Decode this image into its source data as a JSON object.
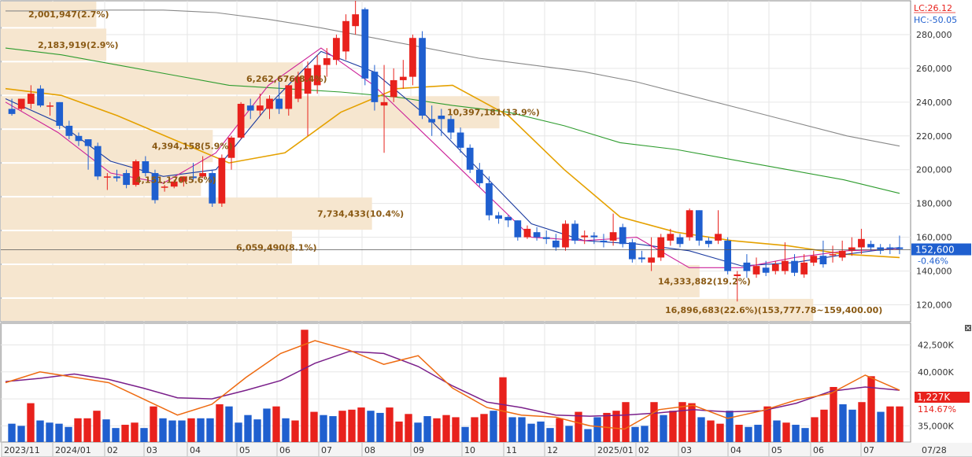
{
  "chart_data": {
    "type": "candlestick",
    "price_panel": {
      "ylim": [
        110000,
        300000
      ],
      "y_ticks": [
        120000,
        140000,
        160000,
        180000,
        200000,
        220000,
        240000,
        260000,
        280000
      ],
      "y_tick_labels": [
        "120,000",
        "140,000",
        "160,000",
        "180,000",
        "200,000",
        "220,000",
        "240,000",
        "260,000",
        "280,000"
      ],
      "last_price": 152600,
      "last_price_label": "152,600",
      "change_label": "-0.46%",
      "lc_label": "LC:26.12",
      "hc_label": "HC:-50.05",
      "volume_profile": [
        {
          "price_low": 284000,
          "price_high": 300000,
          "length_ratio": 0.105,
          "label": "2,001,947(2.7%)"
        },
        {
          "price_low": 264000,
          "price_high": 284000,
          "length_ratio": 0.116,
          "label": "2,183,919(2.9%)"
        },
        {
          "price_low": 244000,
          "price_high": 264000,
          "length_ratio": 0.332,
          "label": "6,262,676(8.4%)"
        },
        {
          "price_low": 224000,
          "price_high": 244000,
          "length_ratio": 0.548,
          "label": "10,397,181(13.9%)"
        },
        {
          "price_low": 204000,
          "price_high": 224000,
          "length_ratio": 0.233,
          "label": "4,394,158(5.9%)"
        },
        {
          "price_low": 184000,
          "price_high": 204000,
          "length_ratio": 0.22,
          "label": "4,151,170(5.6%)"
        },
        {
          "price_low": 164000,
          "price_high": 184000,
          "length_ratio": 0.408,
          "label": "7,734,433(10.4%)"
        },
        {
          "price_low": 144000,
          "price_high": 164000,
          "length_ratio": 0.32,
          "label": "6,059,490(8.1%)"
        },
        {
          "price_low": 124000,
          "price_high": 144000,
          "length_ratio": 0.768,
          "label": "14,333,882(19.2%)"
        },
        {
          "price_low": 110000,
          "price_high": 124000,
          "length_ratio": 0.893,
          "label": "16,896,683(22.6%)(153,777.78~159,400.00)"
        }
      ],
      "candles": [
        [
          236000,
          242000,
          233000,
          232000
        ],
        [
          236000,
          238000,
          242000,
          235000
        ],
        [
          239000,
          250000,
          245000,
          236000
        ],
        [
          248000,
          250000,
          238000,
          237000
        ],
        [
          238000,
          240000,
          238000,
          232000
        ],
        [
          240000,
          240000,
          226000,
          224000
        ],
        [
          226000,
          229000,
          220000,
          218000
        ],
        [
          220000,
          222000,
          217000,
          214000
        ],
        [
          218000,
          218000,
          214000,
          200000
        ],
        [
          214000,
          216000,
          196000,
          194000
        ],
        [
          196000,
          198000,
          196000,
          188000
        ],
        [
          196000,
          200000,
          195000,
          193000
        ],
        [
          198000,
          200000,
          191000,
          189000
        ],
        [
          191000,
          206000,
          205000,
          190000
        ],
        [
          205000,
          208000,
          198000,
          196000
        ],
        [
          198000,
          200000,
          182000,
          180000
        ],
        [
          190000,
          191000,
          190000,
          187000
        ],
        [
          190000,
          194000,
          193000,
          189000
        ],
        [
          193000,
          196000,
          196000,
          190000
        ],
        [
          196000,
          204000,
          195000,
          193000
        ],
        [
          196000,
          208000,
          198000,
          195000
        ],
        [
          198000,
          200000,
          180000,
          178000
        ],
        [
          180000,
          209000,
          207000,
          178000
        ],
        [
          207000,
          220000,
          219000,
          200000
        ],
        [
          219000,
          240000,
          239000,
          218000
        ],
        [
          238000,
          242000,
          235000,
          230000
        ],
        [
          235000,
          245000,
          238000,
          232000
        ],
        [
          236000,
          244000,
          242000,
          230000
        ],
        [
          242000,
          252000,
          236000,
          233000
        ],
        [
          236000,
          249000,
          250000,
          232000
        ],
        [
          242000,
          258000,
          255000,
          240000
        ],
        [
          245000,
          264000,
          260000,
          220000
        ],
        [
          250000,
          268000,
          262000,
          245000
        ],
        [
          262000,
          272000,
          266000,
          255000
        ],
        [
          265000,
          280000,
          278000,
          262000
        ],
        [
          270000,
          292000,
          288000,
          265000
        ],
        [
          285000,
          300000,
          292000,
          280000
        ],
        [
          295000,
          296000,
          254000,
          250000
        ],
        [
          258000,
          262000,
          240000,
          235000
        ],
        [
          238000,
          262000,
          240000,
          210000
        ],
        [
          243000,
          260000,
          253000,
          240000
        ],
        [
          253000,
          265000,
          255000,
          248000
        ],
        [
          255000,
          280000,
          278000,
          250000
        ],
        [
          278000,
          282000,
          232000,
          230000
        ],
        [
          230000,
          238000,
          228000,
          220000
        ],
        [
          232000,
          236000,
          230000,
          220000
        ],
        [
          230000,
          232000,
          222000,
          218000
        ],
        [
          222000,
          225000,
          213000,
          210000
        ],
        [
          213000,
          215000,
          200000,
          198000
        ],
        [
          200000,
          204000,
          192000,
          190000
        ],
        [
          192000,
          196000,
          173000,
          170000
        ],
        [
          173000,
          175000,
          171000,
          168000
        ],
        [
          172000,
          173000,
          170000,
          166000
        ],
        [
          170000,
          170000,
          160000,
          158000
        ],
        [
          160000,
          167000,
          165000,
          159000
        ],
        [
          163000,
          166000,
          160000,
          158000
        ],
        [
          160000,
          164000,
          159000,
          156000
        ],
        [
          158000,
          162000,
          154000,
          152000
        ],
        [
          154000,
          170000,
          168000,
          152000
        ],
        [
          168000,
          170000,
          158000,
          156000
        ],
        [
          160000,
          164000,
          161000,
          156000
        ],
        [
          161000,
          163000,
          160000,
          156000
        ],
        [
          158000,
          162000,
          157000,
          154000
        ],
        [
          158000,
          174000,
          163000,
          155000
        ],
        [
          166000,
          168000,
          156000,
          154000
        ],
        [
          157000,
          159000,
          147000,
          145000
        ],
        [
          148000,
          152000,
          147000,
          145000
        ],
        [
          145000,
          160000,
          148000,
          140000
        ],
        [
          148000,
          162000,
          160000,
          146000
        ],
        [
          158000,
          165000,
          162000,
          155000
        ],
        [
          160000,
          162000,
          156000,
          154000
        ],
        [
          160000,
          177000,
          176000,
          158000
        ],
        [
          176000,
          176000,
          158000,
          155000
        ],
        [
          158000,
          160000,
          156000,
          154000
        ],
        [
          158000,
          176000,
          162000,
          156000
        ],
        [
          158000,
          160000,
          140000,
          138000
        ],
        [
          137000,
          140000,
          138000,
          122000
        ],
        [
          145000,
          150000,
          140000,
          136000
        ],
        [
          138000,
          148000,
          143000,
          136000
        ],
        [
          142000,
          146000,
          139000,
          137000
        ],
        [
          140000,
          146000,
          144000,
          138000
        ],
        [
          140000,
          157000,
          146000,
          138000
        ],
        [
          146000,
          150000,
          139000,
          137000
        ],
        [
          138000,
          150000,
          145000,
          136000
        ],
        [
          145000,
          152000,
          149000,
          143000
        ],
        [
          149000,
          158000,
          144000,
          142000
        ],
        [
          150000,
          155000,
          150000,
          145000
        ],
        [
          148000,
          158000,
          152000,
          146000
        ],
        [
          152000,
          160000,
          154000,
          149000
        ],
        [
          154000,
          165000,
          159000,
          150000
        ],
        [
          156000,
          158000,
          154000,
          152000
        ],
        [
          154000,
          156000,
          152000,
          150000
        ],
        [
          154000,
          156000,
          153000,
          150000
        ],
        [
          154000,
          161000,
          153000,
          150000
        ]
      ],
      "moving_averages": [
        {
          "color": "#888888",
          "values": [
            294000,
            294000,
            294500,
            294500,
            293000,
            289000,
            284000,
            278000,
            272000,
            266000,
            262000,
            258000,
            252000,
            244000,
            236000,
            228000,
            220000,
            214000
          ]
        },
        {
          "color": "#2e9c2e",
          "values": [
            272000,
            268000,
            262000,
            256000,
            250000,
            248000,
            246000,
            243000,
            238000,
            234000,
            226000,
            216000,
            212000,
            206000,
            200000,
            194000,
            186000
          ]
        },
        {
          "color": "#e5a100",
          "values": [
            248000,
            244000,
            232000,
            218000,
            204000,
            210000,
            234000,
            248000,
            250000,
            232000,
            200000,
            172000,
            163000,
            158000,
            155000,
            150000,
            148000
          ]
        },
        {
          "color": "#1a3aa0",
          "values": [
            242000,
            228000,
            205000,
            196000,
            200000,
            238000,
            270000,
            258000,
            232000,
            200000,
            168000,
            158000,
            156000,
            152000,
            143000,
            145000,
            150000,
            154000
          ]
        },
        {
          "color": "#cc2299",
          "values": [
            240000,
            222000,
            198000,
            192000,
            210000,
            250000,
            272000,
            250000,
            220000,
            190000,
            160000,
            158000,
            160000,
            142000,
            142000,
            148000,
            152000,
            153000
          ]
        }
      ]
    },
    "volume_panel": {
      "ylim": [
        33500,
        44500
      ],
      "y_ticks": [
        35000,
        37500,
        40000,
        42500
      ],
      "y_tick_labels": [
        "35,000K",
        "37,500K",
        "40,000K",
        "42,500K"
      ],
      "last_label": "1,227K",
      "ratio_label": "114.67%",
      "bars": [
        [
          35200,
          "d"
        ],
        [
          35000,
          "d"
        ],
        [
          37100,
          "u"
        ],
        [
          35500,
          "d"
        ],
        [
          35300,
          "d"
        ],
        [
          35200,
          "d"
        ],
        [
          34900,
          "d"
        ],
        [
          35700,
          "u"
        ],
        [
          35700,
          "u"
        ],
        [
          36400,
          "u"
        ],
        [
          35600,
          "d"
        ],
        [
          34800,
          "d"
        ],
        [
          35100,
          "u"
        ],
        [
          35300,
          "u"
        ],
        [
          34800,
          "d"
        ],
        [
          36800,
          "u"
        ],
        [
          35700,
          "d"
        ],
        [
          35500,
          "d"
        ],
        [
          35500,
          "d"
        ],
        [
          35700,
          "u"
        ],
        [
          35700,
          "d"
        ],
        [
          35700,
          "d"
        ],
        [
          37000,
          "u"
        ],
        [
          36800,
          "d"
        ],
        [
          35300,
          "d"
        ],
        [
          36000,
          "d"
        ],
        [
          35600,
          "d"
        ],
        [
          36600,
          "d"
        ],
        [
          36800,
          "u"
        ],
        [
          35700,
          "d"
        ],
        [
          35500,
          "u"
        ],
        [
          43900,
          "u"
        ],
        [
          36300,
          "u"
        ],
        [
          36000,
          "d"
        ],
        [
          35900,
          "d"
        ],
        [
          36400,
          "u"
        ],
        [
          36500,
          "u"
        ],
        [
          36700,
          "u"
        ],
        [
          36400,
          "d"
        ],
        [
          36200,
          "d"
        ],
        [
          36700,
          "u"
        ],
        [
          35400,
          "u"
        ],
        [
          36100,
          "u"
        ],
        [
          35300,
          "d"
        ],
        [
          35900,
          "d"
        ],
        [
          35700,
          "u"
        ],
        [
          36000,
          "u"
        ],
        [
          35800,
          "u"
        ],
        [
          34900,
          "d"
        ],
        [
          35800,
          "u"
        ],
        [
          36100,
          "u"
        ],
        [
          36400,
          "d"
        ],
        [
          39500,
          "u"
        ],
        [
          35800,
          "d"
        ],
        [
          35800,
          "d"
        ],
        [
          35200,
          "d"
        ],
        [
          35400,
          "d"
        ],
        [
          34800,
          "d"
        ],
        [
          35700,
          "u"
        ],
        [
          35000,
          "d"
        ],
        [
          36300,
          "u"
        ],
        [
          34700,
          "d"
        ],
        [
          35800,
          "d"
        ],
        [
          36200,
          "u"
        ],
        [
          36400,
          "u"
        ],
        [
          37200,
          "u"
        ],
        [
          34900,
          "d"
        ],
        [
          35000,
          "d"
        ],
        [
          37200,
          "u"
        ],
        [
          36000,
          "d"
        ],
        [
          36400,
          "u"
        ],
        [
          37200,
          "u"
        ],
        [
          37100,
          "u"
        ],
        [
          35800,
          "d"
        ],
        [
          35500,
          "u"
        ],
        [
          35200,
          "u"
        ],
        [
          36400,
          "d"
        ],
        [
          35100,
          "u"
        ],
        [
          34900,
          "d"
        ],
        [
          35100,
          "d"
        ],
        [
          36800,
          "u"
        ],
        [
          35500,
          "d"
        ],
        [
          35300,
          "u"
        ],
        [
          35100,
          "d"
        ],
        [
          34800,
          "d"
        ],
        [
          35800,
          "u"
        ],
        [
          36500,
          "u"
        ],
        [
          38600,
          "u"
        ],
        [
          37000,
          "d"
        ],
        [
          36500,
          "d"
        ],
        [
          37200,
          "u"
        ],
        [
          39600,
          "u"
        ],
        [
          36300,
          "d"
        ],
        [
          36800,
          "u"
        ],
        [
          36800,
          "u"
        ]
      ],
      "lines": [
        {
          "color": "#7a1f8a",
          "values": [
            39100,
            39400,
            39800,
            39300,
            38500,
            37600,
            37500,
            38300,
            39200,
            40800,
            41900,
            41700,
            40500,
            38700,
            37200,
            36700,
            36000,
            35900,
            36000,
            36200,
            36500,
            36300,
            36400,
            37100,
            38200,
            38600,
            38300
          ]
        },
        {
          "color": "#ee6a10",
          "values": [
            39000,
            40000,
            39500,
            39000,
            37500,
            36000,
            37000,
            39500,
            41700,
            42900,
            42000,
            40700,
            41500,
            38500,
            36700,
            36000,
            35800,
            35000,
            34700,
            36500,
            36900,
            35700,
            36400,
            37400,
            38000,
            39700,
            38300
          ]
        }
      ]
    },
    "x_tick_labels": [
      "2023/11",
      "2024/01",
      "02",
      "03",
      "04",
      "05",
      "06",
      "07",
      "08",
      "09",
      "10",
      "11",
      "12",
      "2025/01",
      "02",
      "03",
      "04",
      "05",
      "06",
      "07",
      "07/28"
    ]
  }
}
